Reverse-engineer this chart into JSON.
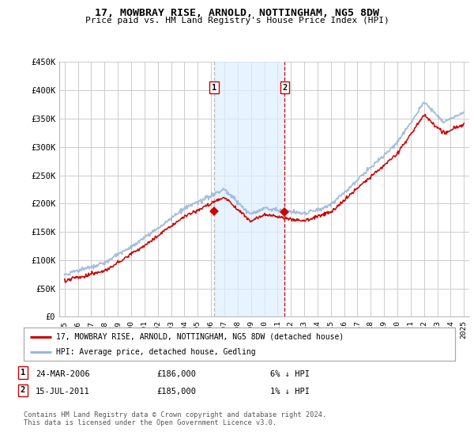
{
  "title": "17, MOWBRAY RISE, ARNOLD, NOTTINGHAM, NG5 8DW",
  "subtitle": "Price paid vs. HM Land Registry's House Price Index (HPI)",
  "background_color": "#ffffff",
  "plot_bg_color": "#ffffff",
  "grid_color": "#cccccc",
  "ylim": [
    0,
    450000
  ],
  "yticks": [
    0,
    50000,
    100000,
    150000,
    200000,
    250000,
    300000,
    350000,
    400000,
    450000
  ],
  "ytick_labels": [
    "£0",
    "£50K",
    "£100K",
    "£150K",
    "£200K",
    "£250K",
    "£300K",
    "£350K",
    "£400K",
    "£450K"
  ],
  "sale1_date_num": 2006.23,
  "sale1_price": 186000,
  "sale1_label": "1",
  "sale1_date_str": "24-MAR-2006",
  "sale1_price_str": "£186,000",
  "sale1_hpi_str": "6% ↓ HPI",
  "sale2_date_num": 2011.54,
  "sale2_price": 185000,
  "sale2_label": "2",
  "sale2_date_str": "15-JUL-2011",
  "sale2_price_str": "£185,000",
  "sale2_hpi_str": "1% ↓ HPI",
  "line_color_property": "#cc0000",
  "line_color_hpi": "#99b8d8",
  "legend_property": "17, MOWBRAY RISE, ARNOLD, NOTTINGHAM, NG5 8DW (detached house)",
  "legend_hpi": "HPI: Average price, detached house, Gedling",
  "footer": "Contains HM Land Registry data © Crown copyright and database right 2024.\nThis data is licensed under the Open Government Licence v3.0.",
  "shade_color": "#ddeeff",
  "dashed_color_sale1": "#aaaaaa",
  "dashed_color_sale2": "#cc0000",
  "xlim_left": 1994.6,
  "xlim_right": 2025.4
}
